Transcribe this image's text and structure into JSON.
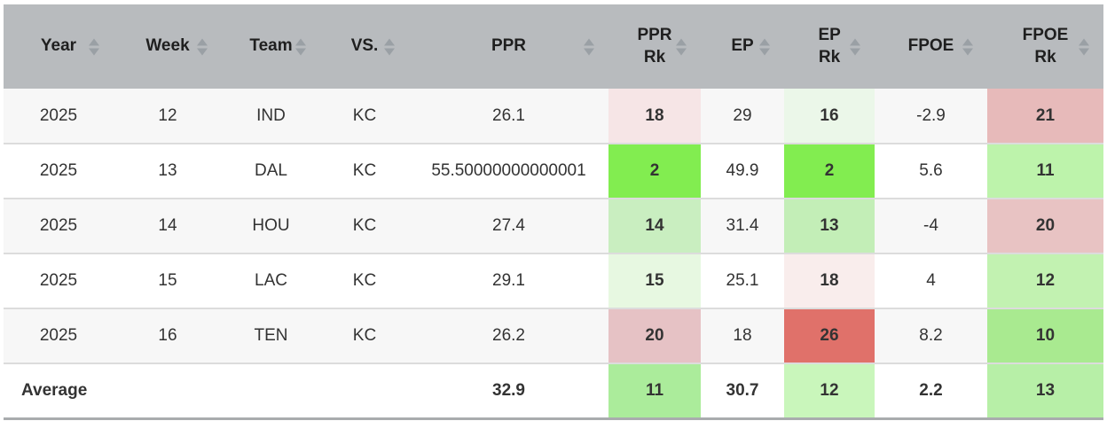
{
  "table": {
    "columns": [
      {
        "id": "year",
        "label": "Year"
      },
      {
        "id": "week",
        "label": "Week"
      },
      {
        "id": "team",
        "label": "Team"
      },
      {
        "id": "vs",
        "label": "VS."
      },
      {
        "id": "ppr",
        "label": "PPR"
      },
      {
        "id": "ppr_rk",
        "label": "PPR Rk"
      },
      {
        "id": "ep",
        "label": "EP"
      },
      {
        "id": "ep_rk",
        "label": "EP Rk"
      },
      {
        "id": "fpoe",
        "label": "FPOE"
      },
      {
        "id": "fpoe_rk",
        "label": "FPOE Rk"
      }
    ],
    "rows": [
      {
        "year": "2025",
        "week": "12",
        "team": "IND",
        "vs": "KC",
        "ppr": "26.1",
        "ppr_rk": "18",
        "ep": "29",
        "ep_rk": "16",
        "fpoe": "-2.9",
        "fpoe_rk": "21",
        "cell_colors": {
          "ppr_rk": "#f6e5e6",
          "ep_rk": "#ebf7e9",
          "fpoe_rk": "#e7baba"
        }
      },
      {
        "year": "2025",
        "week": "13",
        "team": "DAL",
        "vs": "KC",
        "ppr": "55.50000000000001",
        "ppr_rk": "2",
        "ep": "49.9",
        "ep_rk": "2",
        "fpoe": "5.6",
        "fpoe_rk": "11",
        "cell_colors": {
          "ppr_rk": "#82ed50",
          "ep_rk": "#82ed50",
          "fpoe_rk": "#bdf3ab"
        }
      },
      {
        "year": "2025",
        "week": "14",
        "team": "HOU",
        "vs": "KC",
        "ppr": "27.4",
        "ppr_rk": "14",
        "ep": "31.4",
        "ep_rk": "13",
        "fpoe": "-4",
        "fpoe_rk": "20",
        "cell_colors": {
          "ppr_rk": "#c9eec0",
          "ep_rk": "#c3eeb7",
          "fpoe_rk": "#e8c3c3"
        }
      },
      {
        "year": "2025",
        "week": "15",
        "team": "LAC",
        "vs": "KC",
        "ppr": "29.1",
        "ppr_rk": "15",
        "ep": "25.1",
        "ep_rk": "18",
        "fpoe": "4",
        "fpoe_rk": "12",
        "cell_colors": {
          "ppr_rk": "#e7f8e1",
          "ep_rk": "#f9edec",
          "fpoe_rk": "#c2f2b1"
        }
      },
      {
        "year": "2025",
        "week": "16",
        "team": "TEN",
        "vs": "KC",
        "ppr": "26.2",
        "ppr_rk": "20",
        "ep": "18",
        "ep_rk": "26",
        "fpoe": "8.2",
        "fpoe_rk": "10",
        "cell_colors": {
          "ppr_rk": "#e6c2c5",
          "ep_rk": "#e0716a",
          "fpoe_rk": "#a9ea90"
        }
      }
    ],
    "average_row": {
      "year": "Average",
      "week": "",
      "team": "",
      "vs": "",
      "ppr": "32.9",
      "ppr_rk": "11",
      "ep": "30.7",
      "ep_rk": "12",
      "fpoe": "2.2",
      "fpoe_rk": "13",
      "cell_colors": {
        "ppr_rk": "#abec9b",
        "ep_rk": "#c9f6bb",
        "fpoe_rk": "#b7efa7"
      }
    }
  },
  "icons": {
    "sort_up": "sort-ascending-icon",
    "sort_down": "sort-descending-icon"
  },
  "colors": {
    "header_bg": "#b8bbbe",
    "sort_arrow": "#9aa0a5",
    "text": "#333333",
    "header_text": "#1f1f1f",
    "row_bg": "#ffffff",
    "row_alt_bg": "#f7f7f7",
    "row_divider": "#dcdcdc",
    "bottom_border": "#a9acae",
    "rank_best_green": "#82ed50",
    "rank_worst_red": "#e0716a"
  }
}
